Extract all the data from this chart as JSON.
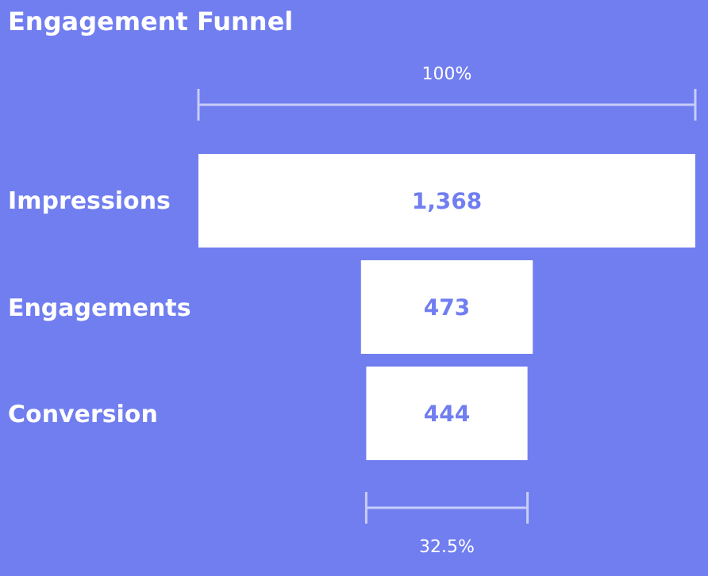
{
  "chart_data": {
    "type": "other",
    "title": "Engagement Funnel",
    "categories": [
      "Impressions",
      "Engagements",
      "Conversion"
    ],
    "values": [
      1368,
      473,
      444
    ],
    "color": "#ffffff",
    "value_labels": [
      "1,368",
      "473",
      "444"
    ],
    "annotations": [
      "100%",
      "32.5%"
    ]
  }
}
